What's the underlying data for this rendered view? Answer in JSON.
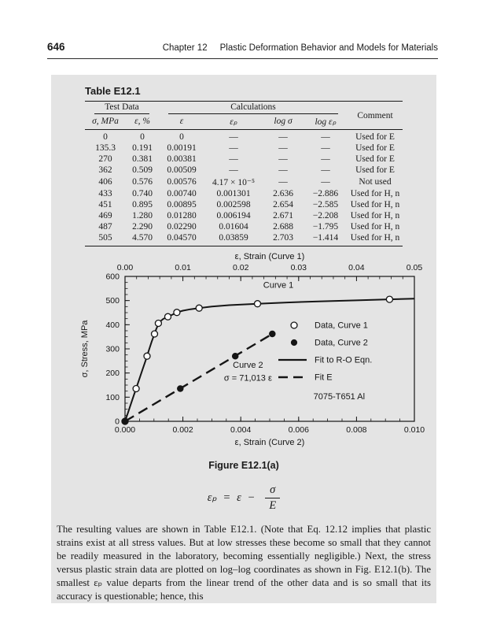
{
  "header": {
    "page_number": "646",
    "chapter_label": "Chapter 12",
    "chapter_title": "Plastic Deformation Behavior and Models for Materials"
  },
  "table": {
    "title": "Table E12.1",
    "group_headers": [
      "Test Data",
      "Calculations",
      "Comment"
    ],
    "columns": [
      "σ, MPa",
      "ε, %",
      "ε",
      "εₚ",
      "log σ",
      "log εₚ"
    ],
    "rows": [
      [
        "0",
        "0",
        "0",
        "—",
        "—",
        "—",
        "Used for E"
      ],
      [
        "135.3",
        "0.191",
        "0.00191",
        "—",
        "—",
        "—",
        "Used for E"
      ],
      [
        "270",
        "0.381",
        "0.00381",
        "—",
        "—",
        "—",
        "Used for E"
      ],
      [
        "362",
        "0.509",
        "0.00509",
        "—",
        "—",
        "—",
        "Used for E"
      ],
      [
        "406",
        "0.576",
        "0.00576",
        "4.17 × 10⁻⁵",
        "—",
        "—",
        "Not used"
      ],
      [
        "433",
        "0.740",
        "0.00740",
        "0.001301",
        "2.636",
        "−2.886",
        "Used for H, n"
      ],
      [
        "451",
        "0.895",
        "0.00895",
        "0.002598",
        "2.654",
        "−2.585",
        "Used for H, n"
      ],
      [
        "469",
        "1.280",
        "0.01280",
        "0.006194",
        "2.671",
        "−2.208",
        "Used for H, n"
      ],
      [
        "487",
        "2.290",
        "0.02290",
        "0.01604",
        "2.688",
        "−1.795",
        "Used for H, n"
      ],
      [
        "505",
        "4.570",
        "0.04570",
        "0.03859",
        "2.703",
        "−1.414",
        "Used for H, n"
      ]
    ]
  },
  "chart_data": {
    "type": "line",
    "axes": {
      "top": {
        "label": "ε, Strain (Curve 1)",
        "range": [
          0,
          0.05
        ],
        "major_ticks": [
          0,
          0.01,
          0.02,
          0.03,
          0.04,
          0.05
        ],
        "tick_labels": [
          "0.00",
          "0.01",
          "0.02",
          "0.03",
          "0.04",
          "0.05"
        ],
        "minor_step": 0.002
      },
      "bottom": {
        "label": "ε, Strain (Curve 2)",
        "range": [
          0,
          0.01
        ],
        "major_ticks": [
          0,
          0.002,
          0.004,
          0.006,
          0.008,
          0.01
        ],
        "tick_labels": [
          "0.000",
          "0.002",
          "0.004",
          "0.006",
          "0.008",
          "0.010"
        ],
        "minor_step": 0.0005
      },
      "y": {
        "label": "σ, Stress, MPa",
        "range": [
          0,
          600
        ],
        "major_ticks": [
          0,
          100,
          200,
          300,
          400,
          500,
          600
        ],
        "tick_labels": [
          "0",
          "100",
          "200",
          "300",
          "400",
          "500",
          "600"
        ],
        "minor_step": 25
      }
    },
    "series": [
      {
        "name": "Fit to R-O Eqn.",
        "axis": "top",
        "kind": "line",
        "style": "solid",
        "points": [
          [
            0,
            0
          ],
          [
            0.0005,
            35
          ],
          [
            0.001,
            71
          ],
          [
            0.0015,
            106
          ],
          [
            0.00191,
            135.3
          ],
          [
            0.0025,
            177
          ],
          [
            0.003,
            213
          ],
          [
            0.0035,
            248
          ],
          [
            0.00381,
            270
          ],
          [
            0.0042,
            300
          ],
          [
            0.0046,
            330
          ],
          [
            0.00509,
            362
          ],
          [
            0.0054,
            382
          ],
          [
            0.00576,
            402
          ],
          [
            0.0061,
            414
          ],
          [
            0.0066,
            424
          ],
          [
            0.0074,
            433
          ],
          [
            0.0082,
            442
          ],
          [
            0.00895,
            451
          ],
          [
            0.01,
            458
          ],
          [
            0.0113,
            464
          ],
          [
            0.0128,
            469
          ],
          [
            0.015,
            475
          ],
          [
            0.018,
            481
          ],
          [
            0.0229,
            487
          ],
          [
            0.028,
            492
          ],
          [
            0.034,
            497
          ],
          [
            0.04,
            501
          ],
          [
            0.0457,
            505
          ],
          [
            0.05,
            508
          ]
        ]
      },
      {
        "name": "Fit E",
        "axis": "bottom",
        "kind": "line",
        "style": "dashed",
        "points": [
          [
            0,
            0
          ],
          [
            0.00509,
            362
          ]
        ]
      },
      {
        "name": "Data, Curve 1",
        "axis": "top",
        "kind": "scatter",
        "marker": "open-circle",
        "points": [
          [
            0,
            0
          ],
          [
            0.00191,
            135.3
          ],
          [
            0.00381,
            270
          ],
          [
            0.00509,
            362
          ],
          [
            0.00576,
            406
          ],
          [
            0.0074,
            433
          ],
          [
            0.00895,
            451
          ],
          [
            0.0128,
            469
          ],
          [
            0.0229,
            487
          ],
          [
            0.0457,
            505
          ]
        ]
      },
      {
        "name": "Data, Curve 2",
        "axis": "bottom",
        "kind": "scatter",
        "marker": "filled-circle",
        "points": [
          [
            0,
            0
          ],
          [
            0.00191,
            135.3
          ],
          [
            0.00381,
            270
          ],
          [
            0.00509,
            362
          ]
        ]
      }
    ],
    "legend": {
      "position": "right-middle",
      "items": [
        {
          "symbol": "open-circle",
          "label": "Data, Curve 1"
        },
        {
          "symbol": "filled-circle",
          "label": "Data, Curve 2"
        },
        {
          "symbol": "solid-line",
          "label": "Fit to R-O Eqn."
        },
        {
          "symbol": "dashed-line",
          "label": "Fit E"
        }
      ]
    },
    "annotations": [
      {
        "text": "Curve 1",
        "axis": "top",
        "x": 0.0265,
        "y": 552
      },
      {
        "text": "Curve 2",
        "axis": "bottom",
        "x": 0.00425,
        "y": 222
      },
      {
        "text": "σ = 71,013 ε",
        "axis": "bottom",
        "x": 0.00425,
        "y": 168
      },
      {
        "text": "7075-T651 Al",
        "axis": "bottom",
        "x": 0.0074,
        "y": 92
      }
    ],
    "grid": false
  },
  "figure": {
    "caption": "Figure E12.1(a)"
  },
  "equation": {
    "lhs": "εₚ",
    "equals": "=",
    "rhs_var": "ε",
    "operator": "−",
    "frac_num": "σ",
    "frac_den": "E"
  },
  "paragraph": "The resulting values are shown in Table E12.1. (Note that Eq. 12.12 implies that plastic strains exist at all stress values. But at low stresses these become so small that they cannot be readily measured in the laboratory, becoming essentially negligible.) Next, the stress versus plastic strain data are plotted on log–log coordinates as shown in Fig. E12.1(b). The smallest εₚ value departs from the linear trend of the other data and is so small that its accuracy is questionable; hence, this"
}
